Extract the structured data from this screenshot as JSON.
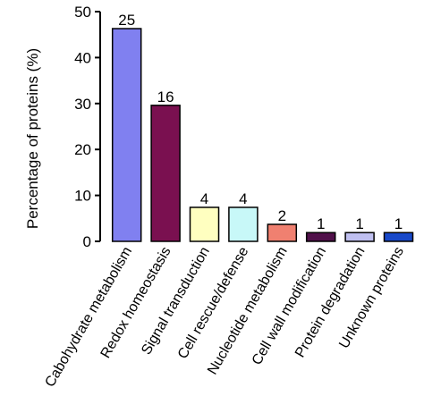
{
  "chart_data": {
    "type": "bar",
    "title": "",
    "xlabel": "",
    "ylabel": "Percentage of proteins (%)",
    "ylim": [
      0,
      50
    ],
    "yticks": [
      0,
      10,
      20,
      30,
      40,
      50
    ],
    "grid": false,
    "categories": [
      "Cabohydrate metabolism",
      "Redox homeostasis",
      "Signal transduction",
      "Cell rescue/defense",
      "Nucleotide metabolism",
      "Cell wall modification",
      "Protein degradation",
      "Unknown proteins"
    ],
    "values": [
      46.3,
      29.6,
      7.4,
      7.4,
      3.7,
      1.9,
      1.9,
      1.9
    ],
    "data_labels": [
      "25",
      "16",
      "4",
      "4",
      "2",
      "1",
      "1",
      "1"
    ],
    "colors": [
      "#8080f0",
      "#7a1050",
      "#ffffc0",
      "#c8f8f8",
      "#f08070",
      "#50104a",
      "#c0c0f0",
      "#1848c8"
    ]
  }
}
